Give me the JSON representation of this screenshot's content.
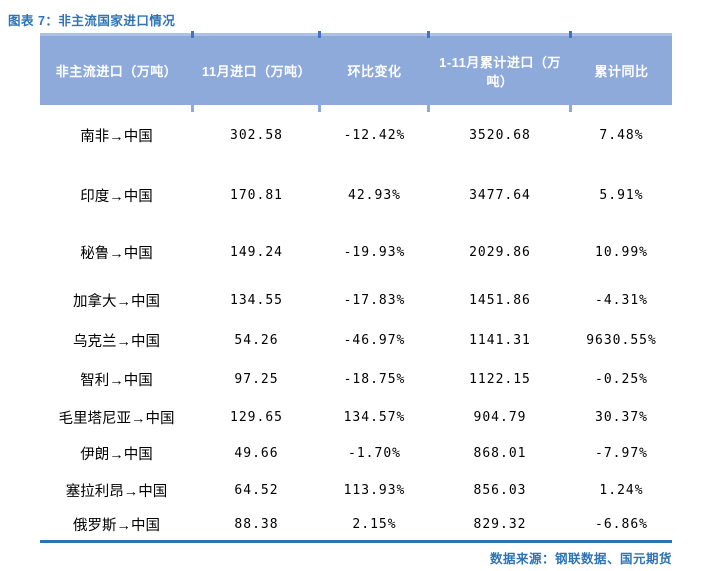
{
  "title": "图表 7：非主流国家进口情况",
  "table": {
    "headers": [
      "非主流进口（万吨）",
      "11月进口（万吨）",
      "环比变化",
      "1-11月累计进口（万吨）",
      "累计同比"
    ],
    "rows": [
      [
        "南非→中国",
        "302.58",
        "-12.42%",
        "3520.68",
        "7.48%"
      ],
      [
        "印度→中国",
        "170.81",
        "42.93%",
        "3477.64",
        "5.91%"
      ],
      [
        "秘鲁→中国",
        "149.24",
        "-19.93%",
        "2029.86",
        "10.99%"
      ],
      [
        "加拿大→中国",
        "134.55",
        "-17.83%",
        "1451.86",
        "-4.31%"
      ],
      [
        "乌克兰→中国",
        "54.26",
        "-46.97%",
        "1141.31",
        "9630.55%"
      ],
      [
        "智利→中国",
        "97.25",
        "-18.75%",
        "1122.15",
        "-0.25%"
      ],
      [
        "毛里塔尼亚→中国",
        "129.65",
        "134.57%",
        "904.79",
        "30.37%"
      ],
      [
        "伊朗→中国",
        "49.66",
        "-1.70%",
        "868.01",
        "-7.97%"
      ],
      [
        "塞拉利昂→中国",
        "64.52",
        "113.93%",
        "856.03",
        "1.24%"
      ],
      [
        "俄罗斯→中国",
        "88.38",
        "2.15%",
        "829.32",
        "-6.86%"
      ]
    ]
  },
  "footer": {
    "source_text": "数据来源：钢联数据、国元期货"
  },
  "colors": {
    "accent_title": "#2E74B5",
    "header_bg": "#8EAADB",
    "header_text": "#FFFFFF",
    "top_line": "#ADC1E5",
    "tick": "#4472C4",
    "bottom_border": "#2E74B5"
  }
}
